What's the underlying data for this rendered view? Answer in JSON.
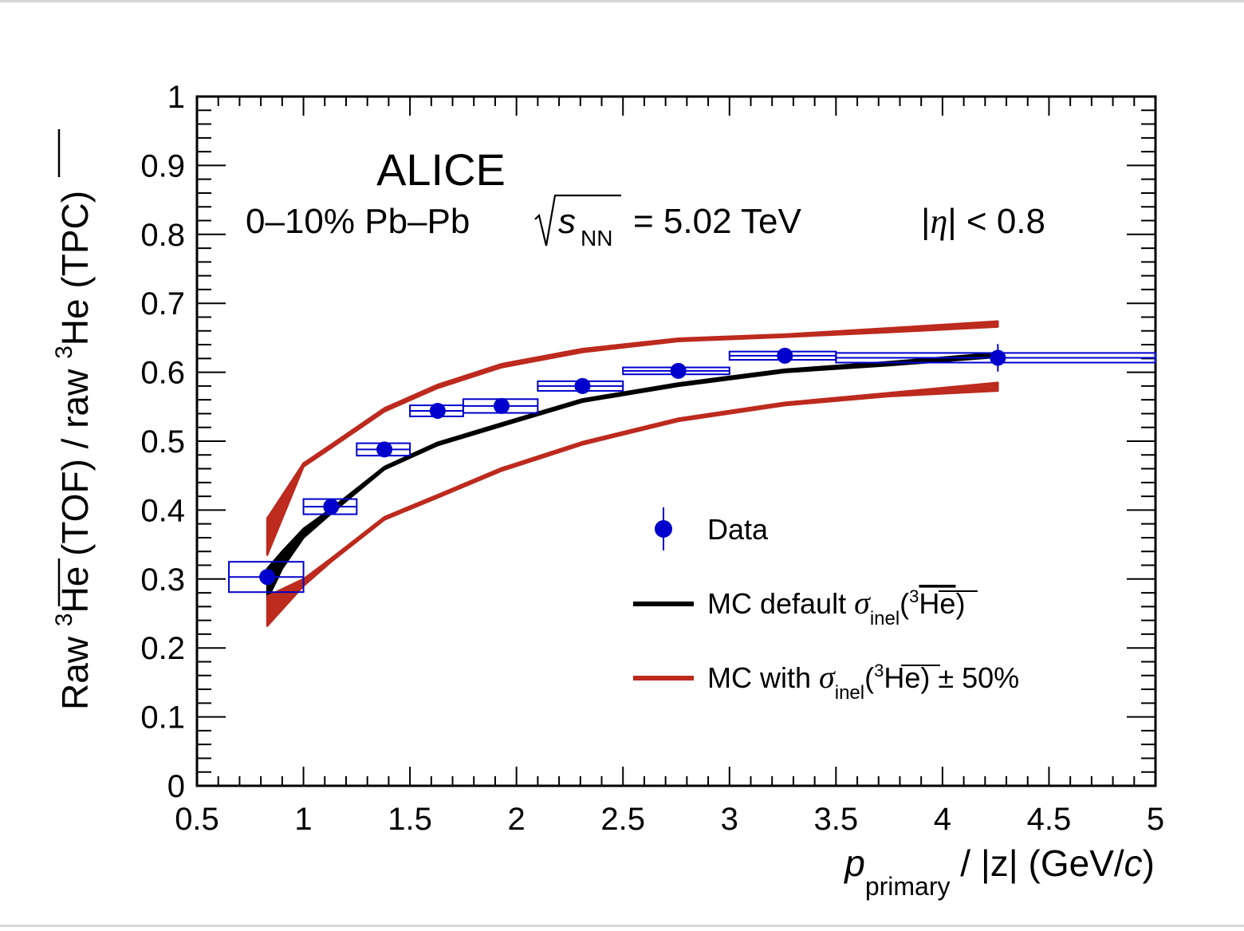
{
  "chart_data": {
    "type": "scatter",
    "experiment_label": "ALICE",
    "collision": {
      "centrality_system": "0–10% Pb–Pb",
      "sqrt": "s",
      "sqrt_sub": "NN",
      "energy": "= 5.02 TeV"
    },
    "eta_cut": {
      "lhs": "|",
      "eta": "η",
      "rhs": "| < 0.8"
    },
    "xlabel": {
      "p": "p",
      "sub": "primary",
      "rest": " / |z| (GeV/",
      "c": "c",
      "close": ")"
    },
    "ylabel": {
      "pre": "Raw ",
      "sup": "3",
      "he": "He",
      "mid": " (TOF) / raw ",
      "sup2": "3",
      "he2": "He",
      "post": " (TPC)"
    },
    "xlim": [
      0.5,
      5.0
    ],
    "ylim": [
      0.0,
      1.0
    ],
    "x_major_ticks": [
      0.5,
      1,
      1.5,
      2,
      2.5,
      3,
      3.5,
      4,
      4.5,
      5
    ],
    "x_tick_labels": [
      "0.5",
      "1",
      "1.5",
      "2",
      "2.5",
      "3",
      "3.5",
      "4",
      "4.5",
      "5"
    ],
    "y_major_ticks": [
      0,
      0.1,
      0.2,
      0.3,
      0.4,
      0.5,
      0.6,
      0.7,
      0.8,
      0.9,
      1
    ],
    "y_tick_labels": [
      "0",
      "0.1",
      "0.2",
      "0.3",
      "0.4",
      "0.5",
      "0.6",
      "0.7",
      "0.8",
      "0.9",
      "1"
    ],
    "series": [
      {
        "name": "Data",
        "color": "#0000cc",
        "points": [
          {
            "x": 0.83,
            "y": 0.303,
            "stat": 0.004,
            "xlo": 0.65,
            "xhi": 1.0,
            "syst": 0.022
          },
          {
            "x": 1.13,
            "y": 0.405,
            "stat": 0.004,
            "xlo": 1.0,
            "xhi": 1.25,
            "syst": 0.011
          },
          {
            "x": 1.38,
            "y": 0.488,
            "stat": 0.004,
            "xlo": 1.25,
            "xhi": 1.5,
            "syst": 0.009
          },
          {
            "x": 1.63,
            "y": 0.544,
            "stat": 0.004,
            "xlo": 1.5,
            "xhi": 1.75,
            "syst": 0.008
          },
          {
            "x": 1.93,
            "y": 0.551,
            "stat": 0.004,
            "xlo": 1.75,
            "xhi": 2.1,
            "syst": 0.01
          },
          {
            "x": 2.31,
            "y": 0.58,
            "stat": 0.005,
            "xlo": 2.1,
            "xhi": 2.5,
            "syst": 0.007
          },
          {
            "x": 2.76,
            "y": 0.602,
            "stat": 0.005,
            "xlo": 2.5,
            "xhi": 3.0,
            "syst": 0.005
          },
          {
            "x": 3.26,
            "y": 0.624,
            "stat": 0.01,
            "xlo": 3.0,
            "xhi": 3.5,
            "syst": 0.006
          },
          {
            "x": 4.26,
            "y": 0.621,
            "stat": 0.02,
            "xlo": 3.5,
            "xhi": 5.0,
            "syst": 0.007
          }
        ]
      },
      {
        "name": "MC default",
        "color": "#000000",
        "x": [
          0.83,
          0.9,
          1.0,
          1.13,
          1.38,
          1.63,
          1.93,
          2.31,
          2.76,
          3.26,
          3.75,
          4.26
        ],
        "lower": [
          0.27,
          0.315,
          0.36,
          0.395,
          0.459,
          0.494,
          0.522,
          0.557,
          0.58,
          0.6,
          0.61,
          0.622
        ],
        "upper": [
          0.315,
          0.34,
          0.373,
          0.402,
          0.463,
          0.498,
          0.526,
          0.561,
          0.584,
          0.604,
          0.615,
          0.628
        ]
      },
      {
        "name": "MC +50%",
        "color": "#bd2a1e",
        "x": [
          0.83,
          1.0,
          1.13,
          1.38,
          1.63,
          1.93,
          2.31,
          2.76,
          3.26,
          3.75,
          4.26
        ],
        "lower": [
          0.232,
          0.29,
          0.325,
          0.386,
          0.418,
          0.457,
          0.495,
          0.529,
          0.552,
          0.565,
          0.573
        ],
        "upper": [
          0.275,
          0.3,
          0.33,
          0.39,
          0.422,
          0.461,
          0.499,
          0.533,
          0.556,
          0.57,
          0.585
        ]
      },
      {
        "name": "MC -50%",
        "color": "#bd2a1e",
        "x": [
          0.83,
          1.0,
          1.13,
          1.38,
          1.63,
          1.93,
          2.31,
          2.76,
          3.26,
          3.75,
          4.26
        ],
        "lower": [
          0.335,
          0.463,
          0.49,
          0.543,
          0.577,
          0.607,
          0.629,
          0.645,
          0.651,
          0.658,
          0.666
        ],
        "upper": [
          0.388,
          0.468,
          0.495,
          0.548,
          0.582,
          0.612,
          0.634,
          0.649,
          0.655,
          0.664,
          0.674
        ]
      }
    ],
    "legend": {
      "data_label": "Data",
      "mc_default_label": "MC default ",
      "mc_var_label": "MC with ",
      "sigma": "σ",
      "inel": "inel",
      "paren_open": "(",
      "sup3": "3",
      "he": "He",
      "paren_close": ")",
      "pm50": ") ± 50%"
    }
  }
}
